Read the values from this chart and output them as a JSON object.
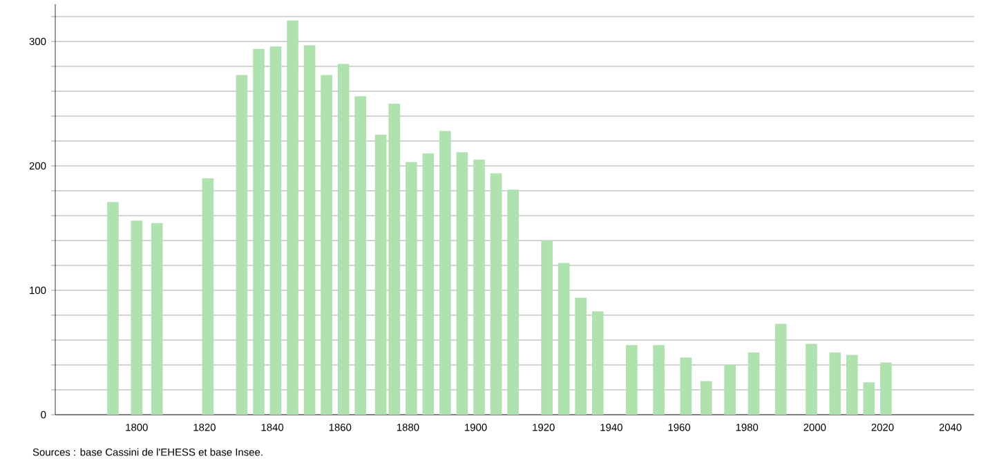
{
  "chart_data": {
    "type": "bar",
    "x": [
      1793,
      1800,
      1806,
      1821,
      1831,
      1836,
      1841,
      1846,
      1851,
      1856,
      1861,
      1866,
      1872,
      1876,
      1881,
      1886,
      1891,
      1896,
      1901,
      1906,
      1911,
      1921,
      1926,
      1931,
      1936,
      1946,
      1954,
      1962,
      1968,
      1975,
      1982,
      1990,
      1999,
      2006,
      2011,
      2016,
      2021
    ],
    "values": [
      171,
      156,
      154,
      190,
      273,
      294,
      296,
      317,
      297,
      273,
      282,
      256,
      225,
      250,
      203,
      210,
      228,
      211,
      205,
      194,
      181,
      140,
      122,
      94,
      83,
      56,
      56,
      46,
      27,
      40,
      50,
      73,
      57,
      50,
      48,
      26,
      42
    ],
    "color": "#b0e2b0",
    "xlim": [
      1776,
      2047
    ],
    "ylim": [
      0,
      330
    ],
    "xticks": [
      1800,
      1820,
      1840,
      1860,
      1880,
      1900,
      1920,
      1940,
      1960,
      1980,
      2000,
      2020,
      2040
    ],
    "yticks": [
      0,
      {
        "value": 20,
        "label": null
      },
      {
        "value": 40,
        "label": null
      },
      {
        "value": 60,
        "label": null
      },
      {
        "value": 80,
        "label": null
      },
      100,
      {
        "value": 120,
        "label": null
      },
      {
        "value": 140,
        "label": null
      },
      {
        "value": 160,
        "label": null
      },
      {
        "value": 180,
        "label": null
      },
      200,
      {
        "value": 220,
        "label": null
      },
      {
        "value": 240,
        "label": null
      },
      {
        "value": 260,
        "label": null
      },
      {
        "value": 280,
        "label": null
      },
      300,
      {
        "value": 320,
        "label": null
      }
    ],
    "grid": "y",
    "annotations": [
      "Sources : base Cassini de l'EHESS et base Insee."
    ]
  }
}
